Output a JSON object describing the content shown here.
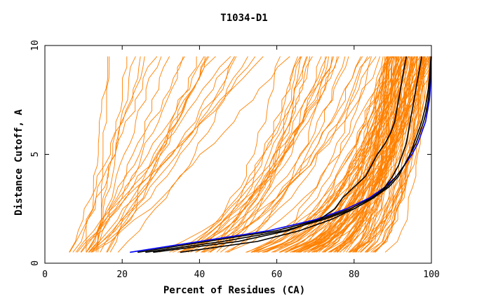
{
  "chart_data": {
    "type": "line",
    "title": "T1034-D1",
    "xlabel": "Percent of Residues (CA)",
    "ylabel": "Distance Cutoff, A",
    "xlim": [
      0,
      100
    ],
    "ylim": [
      0,
      10
    ],
    "xticks": [
      0,
      20,
      40,
      60,
      80,
      100
    ],
    "yticks": [
      0,
      5,
      10
    ],
    "grid": false,
    "y_step": 0.5,
    "y_levels": [
      0.5,
      1,
      1.5,
      2,
      2.5,
      3,
      3.5,
      4,
      4.5,
      5,
      5.5,
      6,
      6.5,
      7,
      7.5,
      8,
      8.5,
      9,
      9.5
    ],
    "colors": {
      "background_models": "#ff8000",
      "highlight_black": "#000000",
      "highlight_blue": "#0000ff"
    },
    "series": [
      {
        "color": "#0000ff",
        "x": [
          22,
          40,
          58,
          70,
          78,
          84,
          88,
          91,
          93,
          95,
          96.5,
          97.5,
          98.5,
          99,
          99.5,
          99.7,
          99.8,
          99.9,
          100
        ]
      },
      {
        "color": "#000000",
        "x": [
          24,
          42,
          60,
          71,
          79,
          84.5,
          88.5,
          91,
          93,
          94.5,
          96,
          97,
          98,
          98.7,
          99.2,
          99.5,
          99.7,
          99.8,
          99.9
        ]
      },
      {
        "color": "#000000",
        "x": [
          35,
          55,
          66,
          74,
          80,
          85,
          88,
          90,
          91.5,
          92.5,
          93.5,
          94,
          94.5,
          95,
          95.5,
          96,
          96.5,
          97,
          97.5
        ]
      },
      {
        "color": "#000000",
        "x": [
          28,
          50,
          63,
          71,
          75,
          77,
          80,
          83,
          84.5,
          86,
          88,
          89.5,
          90.5,
          91,
          91.5,
          92,
          92.5,
          93,
          93.5
        ]
      },
      {
        "color": "#000000",
        "x": [
          26,
          46,
          62,
          72,
          80,
          85,
          89,
          91.5,
          93,
          94.5,
          95.5,
          96.5,
          97.5,
          98.2,
          98.8,
          99.2,
          99.5,
          99.7,
          99.9
        ]
      }
    ]
  }
}
